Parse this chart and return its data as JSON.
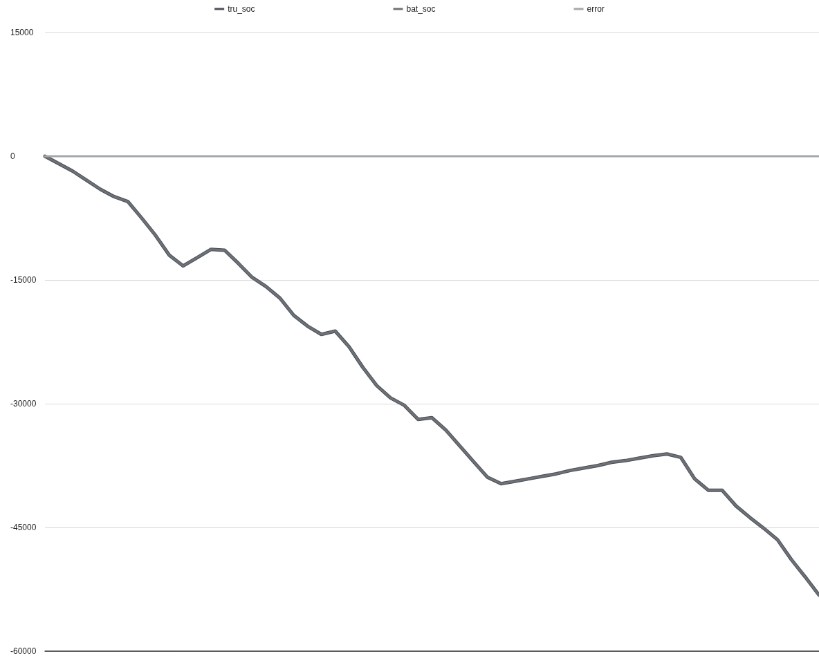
{
  "chart_data": {
    "type": "line",
    "categories": [
      null,
      null,
      null,
      null,
      null,
      null,
      null,
      null,
      null,
      null,
      null,
      null,
      null,
      null,
      null,
      null,
      null,
      null,
      null,
      null,
      null,
      null,
      null,
      null,
      null,
      null,
      null,
      null,
      null,
      null,
      null,
      null,
      null,
      null,
      null,
      null,
      null,
      null,
      null,
      null,
      null,
      null,
      null,
      null,
      null,
      null,
      null,
      null,
      null,
      null,
      null,
      null,
      null,
      null,
      null,
      null,
      null
    ],
    "series": [
      {
        "name": "tru_soc",
        "color": "#4a4f57",
        "values": [
          0,
          -900,
          -1800,
          -2900,
          -4000,
          -4900,
          -5500,
          -7500,
          -9600,
          -12000,
          -13300,
          -12300,
          -11300,
          -11400,
          -13000,
          -14700,
          -15800,
          -17200,
          -19300,
          -20600,
          -21600,
          -21200,
          -23100,
          -25600,
          -27800,
          -29300,
          -30200,
          -31900,
          -31700,
          -33200,
          -35100,
          -37000,
          -38900,
          -39700,
          -39400,
          -39100,
          -38800,
          -38500,
          -38100,
          -37800,
          -37500,
          -37100,
          -36900,
          -36600,
          -36300,
          -36100,
          -36500,
          -39100,
          -40500,
          -40500,
          -42400,
          -43800,
          -45100,
          -46500,
          -48900,
          -51000,
          -53200
        ]
      },
      {
        "name": "bat_soc",
        "color": "#6e7277",
        "values": [
          0,
          -900,
          -1800,
          -2900,
          -4000,
          -4900,
          -5500,
          -7500,
          -9600,
          -12000,
          -13300,
          -12300,
          -11300,
          -11400,
          -13000,
          -14700,
          -15800,
          -17200,
          -19300,
          -20600,
          -21600,
          -21200,
          -23100,
          -25600,
          -27800,
          -29300,
          -30200,
          -31900,
          -31700,
          -33200,
          -35100,
          -37000,
          -38900,
          -39700,
          -39400,
          -39100,
          -38800,
          -38500,
          -38100,
          -37800,
          -37500,
          -37100,
          -36900,
          -36600,
          -36300,
          -36100,
          -36500,
          -39100,
          -40500,
          -40500,
          -42400,
          -43800,
          -45100,
          -46500,
          -48900,
          -51000,
          -53200
        ]
      },
      {
        "name": "error",
        "color": "#a5a8ab",
        "values": [
          0,
          0,
          0,
          0,
          0,
          0,
          0,
          0,
          0,
          0,
          0,
          0,
          0,
          0,
          0,
          0,
          0,
          0,
          0,
          0,
          0,
          0,
          0,
          0,
          0,
          0,
          0,
          0,
          0,
          0,
          0,
          0,
          0,
          0,
          0,
          0,
          0,
          0,
          0,
          0,
          0,
          0,
          0,
          0,
          0,
          0,
          0,
          0,
          0,
          0,
          0,
          0,
          0,
          0,
          0,
          0,
          0
        ]
      }
    ],
    "ylim": [
      -60000,
      15000
    ],
    "yticks": [
      -60000,
      -45000,
      -30000,
      -15000,
      0,
      15000
    ],
    "tick_labels": "y",
    "grid": "y",
    "legend": "top",
    "marker": "none",
    "line_style": "solid"
  }
}
